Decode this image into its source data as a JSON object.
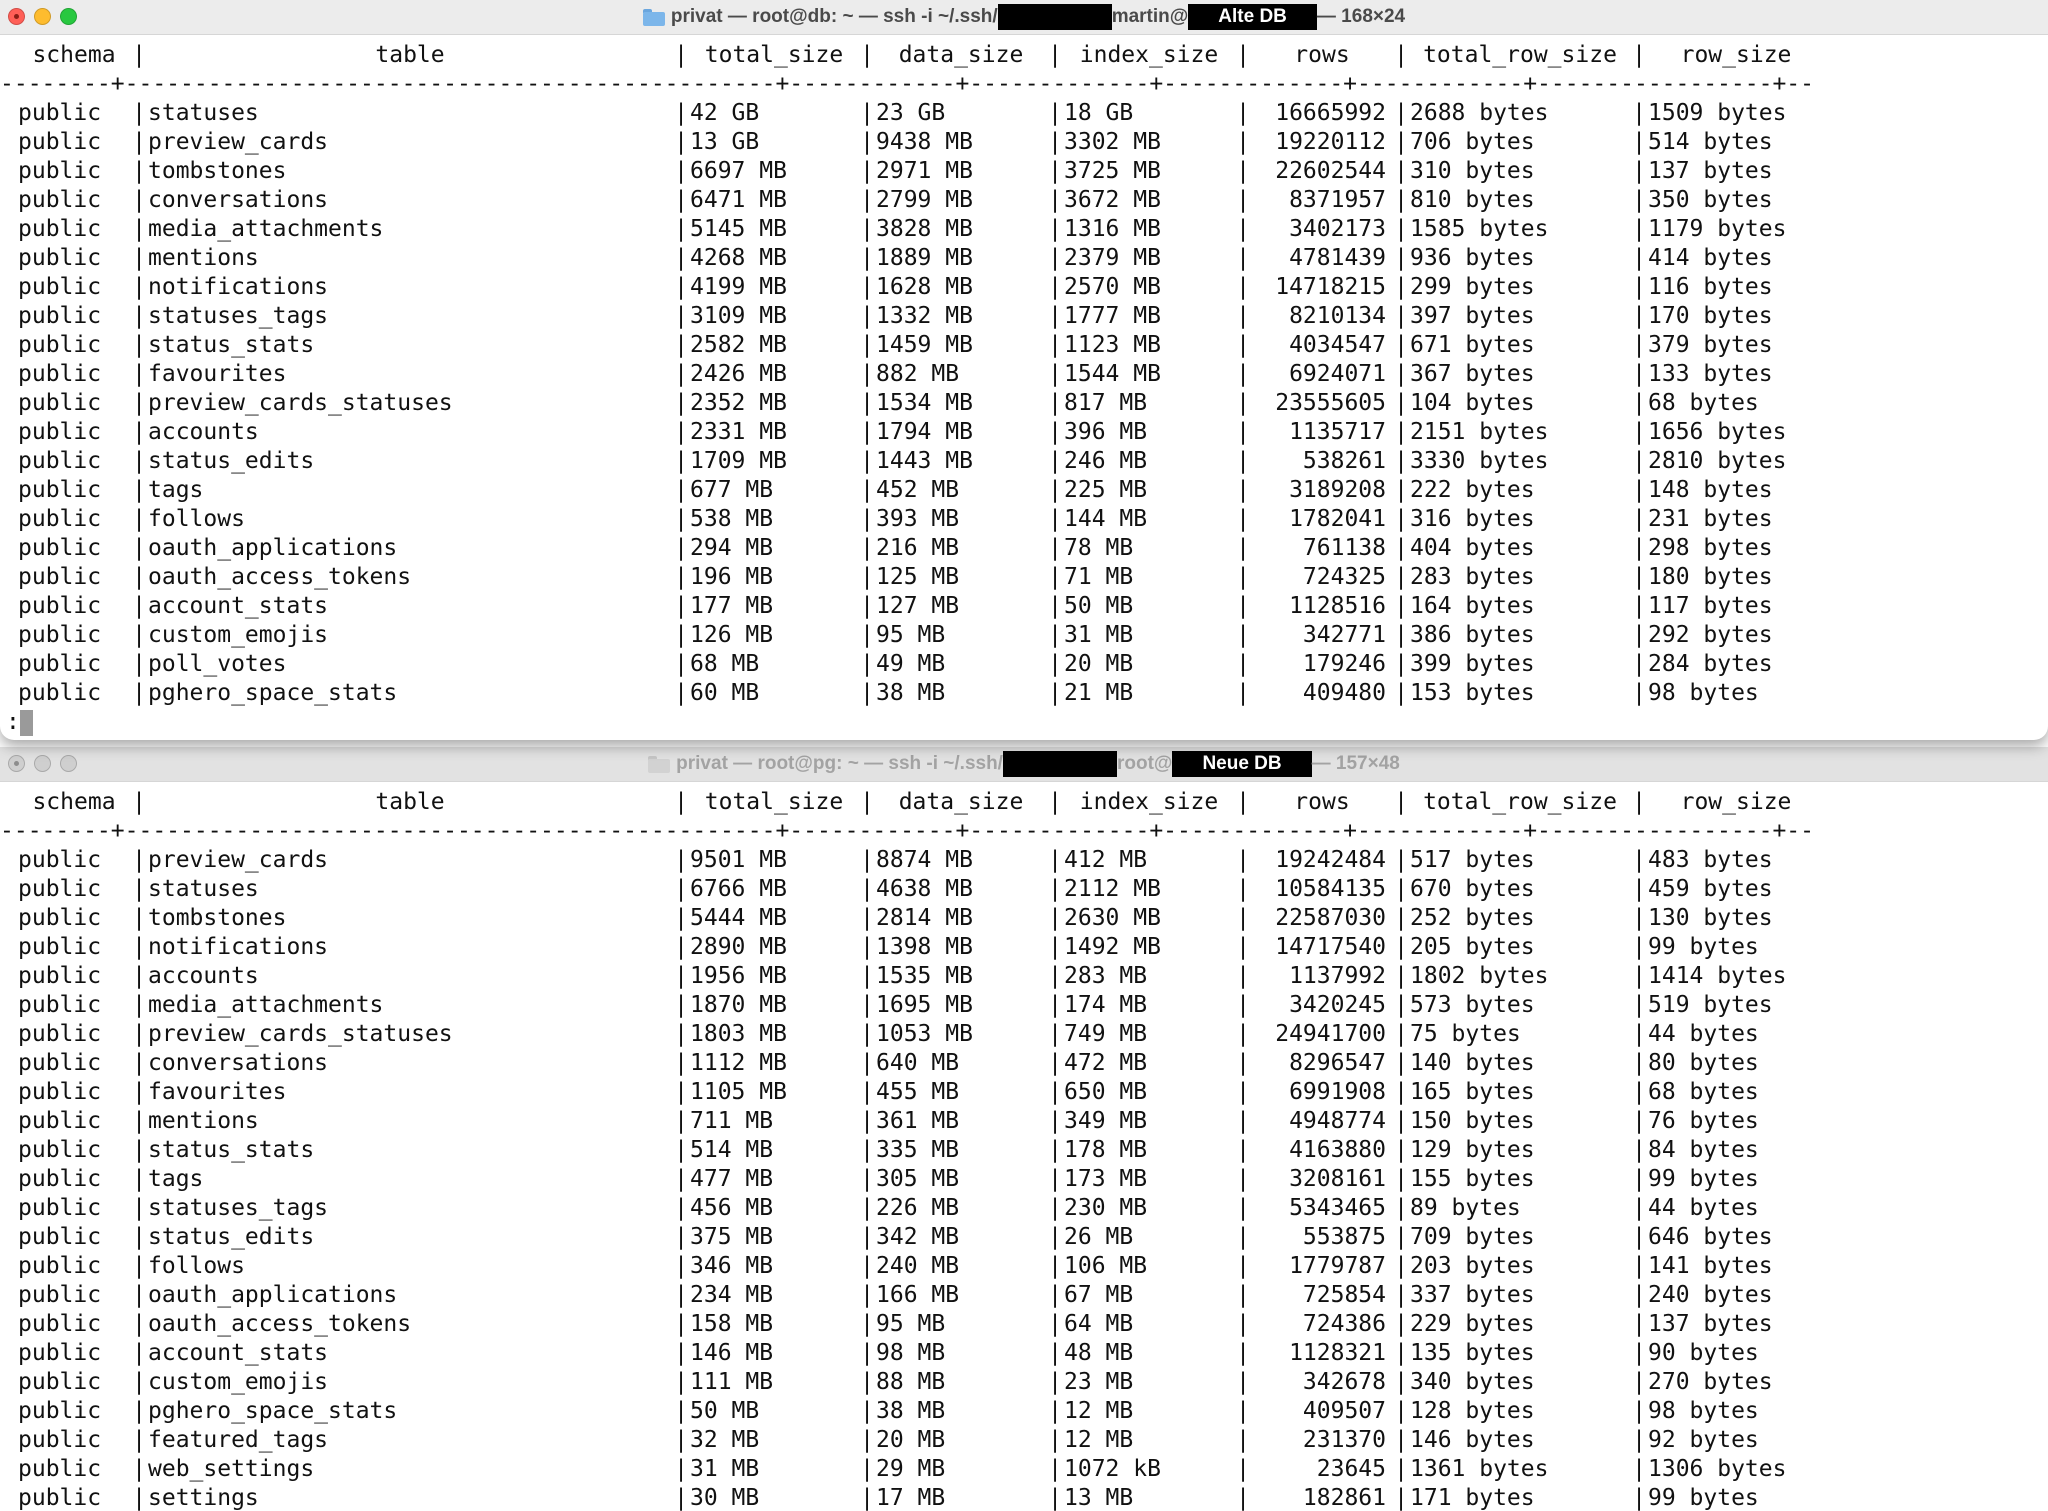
{
  "window_old": {
    "title_left": "privat — root@db: ~ — ssh -i ~/.ssh/",
    "title_mid": "martin@",
    "badge": "Alte DB",
    "title_right": "— 168×24",
    "prompt": ":",
    "headers": [
      "schema",
      "table",
      "total_size",
      "data_size",
      "index_size",
      "rows",
      "total_row_size",
      "row_size"
    ],
    "separator": "--------+-----------------------------------------------+------------+-------------+-------------+------------+-----------------+--------------",
    "rows": [
      [
        "public",
        "statuses",
        "42 GB",
        "23 GB",
        "18 GB",
        "16665992",
        "2688 bytes",
        "1509 bytes"
      ],
      [
        "public",
        "preview_cards",
        "13 GB",
        "9438 MB",
        "3302 MB",
        "19220112",
        "706 bytes",
        "514 bytes"
      ],
      [
        "public",
        "tombstones",
        "6697 MB",
        "2971 MB",
        "3725 MB",
        "22602544",
        "310 bytes",
        "137 bytes"
      ],
      [
        "public",
        "conversations",
        "6471 MB",
        "2799 MB",
        "3672 MB",
        "8371957",
        "810 bytes",
        "350 bytes"
      ],
      [
        "public",
        "media_attachments",
        "5145 MB",
        "3828 MB",
        "1316 MB",
        "3402173",
        "1585 bytes",
        "1179 bytes"
      ],
      [
        "public",
        "mentions",
        "4268 MB",
        "1889 MB",
        "2379 MB",
        "4781439",
        "936 bytes",
        "414 bytes"
      ],
      [
        "public",
        "notifications",
        "4199 MB",
        "1628 MB",
        "2570 MB",
        "14718215",
        "299 bytes",
        "116 bytes"
      ],
      [
        "public",
        "statuses_tags",
        "3109 MB",
        "1332 MB",
        "1777 MB",
        "8210134",
        "397 bytes",
        "170 bytes"
      ],
      [
        "public",
        "status_stats",
        "2582 MB",
        "1459 MB",
        "1123 MB",
        "4034547",
        "671 bytes",
        "379 bytes"
      ],
      [
        "public",
        "favourites",
        "2426 MB",
        "882 MB",
        "1544 MB",
        "6924071",
        "367 bytes",
        "133 bytes"
      ],
      [
        "public",
        "preview_cards_statuses",
        "2352 MB",
        "1534 MB",
        "817 MB",
        "23555605",
        "104 bytes",
        "68 bytes"
      ],
      [
        "public",
        "accounts",
        "2331 MB",
        "1794 MB",
        "396 MB",
        "1135717",
        "2151 bytes",
        "1656 bytes"
      ],
      [
        "public",
        "status_edits",
        "1709 MB",
        "1443 MB",
        "246 MB",
        "538261",
        "3330 bytes",
        "2810 bytes"
      ],
      [
        "public",
        "tags",
        "677 MB",
        "452 MB",
        "225 MB",
        "3189208",
        "222 bytes",
        "148 bytes"
      ],
      [
        "public",
        "follows",
        "538 MB",
        "393 MB",
        "144 MB",
        "1782041",
        "316 bytes",
        "231 bytes"
      ],
      [
        "public",
        "oauth_applications",
        "294 MB",
        "216 MB",
        "78 MB",
        "761138",
        "404 bytes",
        "298 bytes"
      ],
      [
        "public",
        "oauth_access_tokens",
        "196 MB",
        "125 MB",
        "71 MB",
        "724325",
        "283 bytes",
        "180 bytes"
      ],
      [
        "public",
        "account_stats",
        "177 MB",
        "127 MB",
        "50 MB",
        "1128516",
        "164 bytes",
        "117 bytes"
      ],
      [
        "public",
        "custom_emojis",
        "126 MB",
        "95 MB",
        "31 MB",
        "342771",
        "386 bytes",
        "292 bytes"
      ],
      [
        "public",
        "poll_votes",
        "68 MB",
        "49 MB",
        "20 MB",
        "179246",
        "399 bytes",
        "284 bytes"
      ],
      [
        "public",
        "pghero_space_stats",
        "60 MB",
        "38 MB",
        "21 MB",
        "409480",
        "153 bytes",
        "98 bytes"
      ]
    ]
  },
  "window_new": {
    "title_left": "privat — root@pg: ~ — ssh -i ~/.ssh/",
    "title_mid": "root@",
    "badge": "Neue DB",
    "title_right": "— 157×48",
    "headers": [
      "schema",
      "table",
      "total_size",
      "data_size",
      "index_size",
      "rows",
      "total_row_size",
      "row_size"
    ],
    "separator": "--------+-----------------------------------------------+------------+-------------+-------------+------------+-----------------+--------------",
    "rows": [
      [
        "public",
        "preview_cards",
        "9501 MB",
        "8874 MB",
        "412 MB",
        "19242484",
        "517 bytes",
        "483 bytes"
      ],
      [
        "public",
        "statuses",
        "6766 MB",
        "4638 MB",
        "2112 MB",
        "10584135",
        "670 bytes",
        "459 bytes"
      ],
      [
        "public",
        "tombstones",
        "5444 MB",
        "2814 MB",
        "2630 MB",
        "22587030",
        "252 bytes",
        "130 bytes"
      ],
      [
        "public",
        "notifications",
        "2890 MB",
        "1398 MB",
        "1492 MB",
        "14717540",
        "205 bytes",
        "99 bytes"
      ],
      [
        "public",
        "accounts",
        "1956 MB",
        "1535 MB",
        "283 MB",
        "1137992",
        "1802 bytes",
        "1414 bytes"
      ],
      [
        "public",
        "media_attachments",
        "1870 MB",
        "1695 MB",
        "174 MB",
        "3420245",
        "573 bytes",
        "519 bytes"
      ],
      [
        "public",
        "preview_cards_statuses",
        "1803 MB",
        "1053 MB",
        "749 MB",
        "24941700",
        "75 bytes",
        "44 bytes"
      ],
      [
        "public",
        "conversations",
        "1112 MB",
        "640 MB",
        "472 MB",
        "8296547",
        "140 bytes",
        "80 bytes"
      ],
      [
        "public",
        "favourites",
        "1105 MB",
        "455 MB",
        "650 MB",
        "6991908",
        "165 bytes",
        "68 bytes"
      ],
      [
        "public",
        "mentions",
        "711 MB",
        "361 MB",
        "349 MB",
        "4948774",
        "150 bytes",
        "76 bytes"
      ],
      [
        "public",
        "status_stats",
        "514 MB",
        "335 MB",
        "178 MB",
        "4163880",
        "129 bytes",
        "84 bytes"
      ],
      [
        "public",
        "tags",
        "477 MB",
        "305 MB",
        "173 MB",
        "3208161",
        "155 bytes",
        "99 bytes"
      ],
      [
        "public",
        "statuses_tags",
        "456 MB",
        "226 MB",
        "230 MB",
        "5343465",
        "89 bytes",
        "44 bytes"
      ],
      [
        "public",
        "status_edits",
        "375 MB",
        "342 MB",
        "26 MB",
        "553875",
        "709 bytes",
        "646 bytes"
      ],
      [
        "public",
        "follows",
        "346 MB",
        "240 MB",
        "106 MB",
        "1779787",
        "203 bytes",
        "141 bytes"
      ],
      [
        "public",
        "oauth_applications",
        "234 MB",
        "166 MB",
        "67 MB",
        "725854",
        "337 bytes",
        "240 bytes"
      ],
      [
        "public",
        "oauth_access_tokens",
        "158 MB",
        "95 MB",
        "64 MB",
        "724386",
        "229 bytes",
        "137 bytes"
      ],
      [
        "public",
        "account_stats",
        "146 MB",
        "98 MB",
        "48 MB",
        "1128321",
        "135 bytes",
        "90 bytes"
      ],
      [
        "public",
        "custom_emojis",
        "111 MB",
        "88 MB",
        "23 MB",
        "342678",
        "340 bytes",
        "270 bytes"
      ],
      [
        "public",
        "pghero_space_stats",
        "50 MB",
        "38 MB",
        "12 MB",
        "409507",
        "128 bytes",
        "98 bytes"
      ],
      [
        "public",
        "featured_tags",
        "32 MB",
        "20 MB",
        "12 MB",
        "231370",
        "146 bytes",
        "92 bytes"
      ],
      [
        "public",
        "web_settings",
        "31 MB",
        "29 MB",
        "1072 kB",
        "23645",
        "1361 bytes",
        "1306 bytes"
      ],
      [
        "public",
        "settings",
        "30 MB",
        "17 MB",
        "13 MB",
        "182861",
        "171 bytes",
        "99 bytes"
      ]
    ]
  }
}
